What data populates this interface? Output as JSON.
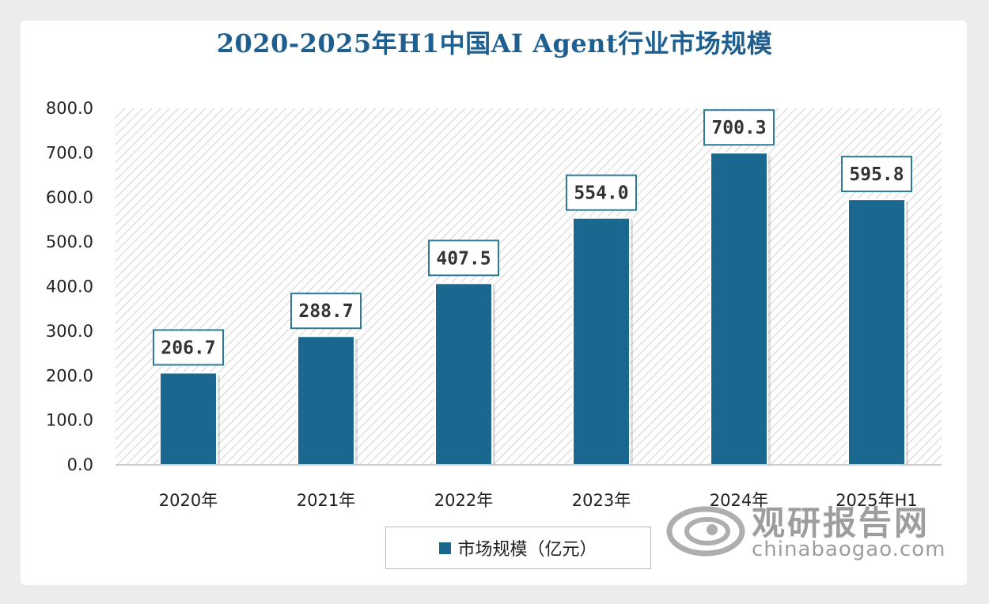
{
  "chart_data": {
    "type": "bar",
    "title": "2020-2025年H1中国AI Agent行业市场规模",
    "categories": [
      "2020年",
      "2021年",
      "2022年",
      "2023年",
      "2024年",
      "2025年H1"
    ],
    "series": [
      {
        "name": "市场规模（亿元）",
        "values": [
          206.7,
          288.7,
          407.5,
          554.0,
          700.3,
          595.8
        ]
      }
    ],
    "data_labels": [
      "206.7",
      "288.7",
      "407.5",
      "554.0",
      "700.3",
      "595.8"
    ],
    "y_ticks": [
      "0.0",
      "100.0",
      "200.0",
      "300.0",
      "400.0",
      "500.0",
      "600.0",
      "700.0",
      "800.0"
    ],
    "ylim": [
      0,
      800
    ],
    "xlabel": "",
    "ylabel": "",
    "legend_position": "bottom",
    "colors": {
      "bar": "#1a6890",
      "title": "#1f5f8f",
      "label_border": "#2a7a98"
    }
  },
  "watermark": {
    "cn": "观研报告网",
    "en": "chinabaogao.com"
  }
}
